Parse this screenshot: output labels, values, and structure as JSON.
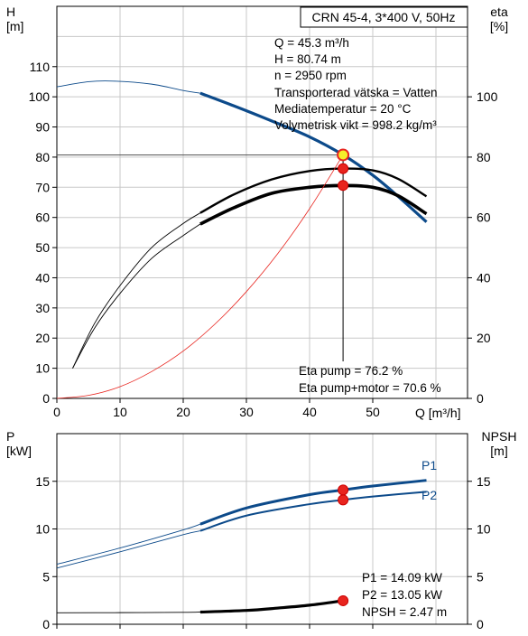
{
  "colors": {
    "blue": "#0c4a8a",
    "red": "#e8241e",
    "black": "#000000",
    "grid": "#c8c8c8",
    "op_point": "#f5ee2a"
  },
  "top_chart": {
    "title_box": "CRN 45-4, 3*400 V, 50Hz",
    "left_axis_label": [
      "H",
      "[m]"
    ],
    "right_axis_label": [
      "eta",
      "[%]"
    ],
    "x_axis_label": "Q [m³/h]",
    "info_lines": [
      "Q = 45.3 m³/h",
      "H = 80.74 m",
      "n = 2950 rpm",
      "Transporterad vätska = Vatten",
      "Mediatemperatur = 20 °C",
      "Volymetrisk vikt = 998.2 kg/m³"
    ],
    "eff_lines": [
      "Eta pump = 76.2 %",
      "Eta pump+motor = 70.6 %"
    ]
  },
  "bottom_chart": {
    "left_axis_label": [
      "P",
      "[kW]"
    ],
    "right_axis_label": [
      "NPSH",
      "[m]"
    ],
    "series_labels": [
      "P1",
      "P2"
    ],
    "info_lines": [
      "P1 = 14.09 kW",
      "P2 = 13.05 kW",
      "NPSH = 2.47 m"
    ]
  },
  "chart_data": [
    {
      "type": "line",
      "title": "CRN 45-4, 3*400 V, 50Hz",
      "xlabel": "Q [m³/h]",
      "ylabel": "H [m]",
      "y2label": "eta [%]",
      "xlim": [
        0,
        65
      ],
      "ylim": [
        0,
        130
      ],
      "y2lim": [
        0,
        130
      ],
      "xticks": [
        0,
        10,
        20,
        30,
        40,
        50
      ],
      "yticks": [
        0,
        10,
        20,
        30,
        40,
        50,
        60,
        70,
        80,
        90,
        100,
        110
      ],
      "y2ticks": [
        0,
        20,
        40,
        60,
        80,
        100
      ],
      "grid": true,
      "series": [
        {
          "axis": "left",
          "style": "head",
          "x": [
            0,
            5,
            9,
            15,
            20,
            22.7
          ],
          "y": [
            103.3,
            105.0,
            105.2,
            104.2,
            102.1,
            101.2
          ]
        },
        {
          "axis": "left",
          "style": "head",
          "x": [
            22.7,
            28,
            34,
            40,
            45.3,
            50,
            54,
            58.5
          ],
          "y": [
            101.2,
            97.0,
            92.0,
            86.7,
            80.74,
            74.0,
            67.0,
            58.5
          ]
        },
        {
          "axis": "right",
          "style": "eta-pump",
          "x": [
            2.5,
            6,
            10,
            15,
            20,
            22.7
          ],
          "y": [
            10.0,
            25.0,
            37.4,
            50.0,
            58.0,
            61.5
          ]
        },
        {
          "axis": "right",
          "style": "eta-pump",
          "x": [
            22.7,
            28,
            34,
            40,
            45.3,
            50,
            54,
            58.5
          ],
          "y": [
            61.5,
            67.6,
            72.6,
            75.4,
            76.2,
            75.6,
            72.8,
            67.0
          ]
        },
        {
          "axis": "right",
          "style": "eta-total",
          "x": [
            2.5,
            6,
            10,
            15,
            20,
            22.7
          ],
          "y": [
            10.0,
            23.4,
            34.8,
            46.4,
            54.0,
            57.8
          ]
        },
        {
          "axis": "right",
          "style": "eta-total",
          "x": [
            22.7,
            28,
            34,
            40,
            45.3,
            50,
            54,
            58.5
          ],
          "y": [
            57.8,
            63.2,
            68.0,
            70.0,
            70.6,
            70.0,
            67.2,
            61.2
          ]
        },
        {
          "axis": "left",
          "style": "system",
          "x": [
            0,
            5,
            10,
            15,
            20,
            25,
            30,
            35,
            40,
            45.3
          ],
          "y": [
            0,
            1,
            3.9,
            8.9,
            15.7,
            24.6,
            35.4,
            48.1,
            62.9,
            80.74
          ]
        }
      ],
      "operating_point": {
        "x": 45.3,
        "y": 80.74
      },
      "efficiency_points": [
        {
          "x": 45.3,
          "value": 76.2
        },
        {
          "x": 45.3,
          "value": 70.6
        }
      ]
    },
    {
      "type": "line",
      "ylabel": "P [kW]",
      "y2label": "NPSH [m]",
      "xlim": [
        0,
        65
      ],
      "ylim": [
        0,
        20
      ],
      "y2lim": [
        0,
        20
      ],
      "xticks": [
        0,
        10,
        20,
        30,
        40,
        50
      ],
      "yticks": [
        0,
        5,
        10,
        15
      ],
      "y2ticks": [
        0,
        5,
        10,
        15
      ],
      "grid": true,
      "series": [
        {
          "name": "P1",
          "axis": "left",
          "style": "p1",
          "x": [
            0,
            10,
            20,
            22.7
          ],
          "y": [
            6.3,
            8.0,
            9.9,
            10.5
          ]
        },
        {
          "name": "P1",
          "axis": "left",
          "style": "p1",
          "x": [
            22.7,
            30,
            40,
            45.3,
            50,
            58.5
          ],
          "y": [
            10.5,
            12.2,
            13.6,
            14.09,
            14.5,
            15.1
          ]
        },
        {
          "name": "P2",
          "axis": "left",
          "style": "p2",
          "x": [
            0,
            10,
            20,
            22.7
          ],
          "y": [
            5.9,
            7.6,
            9.4,
            9.8
          ]
        },
        {
          "name": "P2",
          "axis": "left",
          "style": "p2",
          "x": [
            22.7,
            30,
            40,
            45.3,
            50,
            58.5
          ],
          "y": [
            9.8,
            11.4,
            12.6,
            13.05,
            13.4,
            13.9
          ]
        },
        {
          "axis": "right",
          "style": "npsh",
          "x": [
            0,
            10,
            20,
            22.7
          ],
          "y": [
            1.2,
            1.22,
            1.25,
            1.28
          ]
        },
        {
          "axis": "right",
          "style": "npsh",
          "x": [
            22.7,
            30,
            35,
            40,
            45.3
          ],
          "y": [
            1.28,
            1.45,
            1.7,
            2.0,
            2.47
          ]
        }
      ],
      "operating_points": [
        {
          "label": "P1",
          "x": 45.3,
          "y": 14.09
        },
        {
          "label": "P2",
          "x": 45.3,
          "y": 13.05
        },
        {
          "label": "NPSH",
          "x": 45.3,
          "y": 2.47
        }
      ]
    }
  ]
}
